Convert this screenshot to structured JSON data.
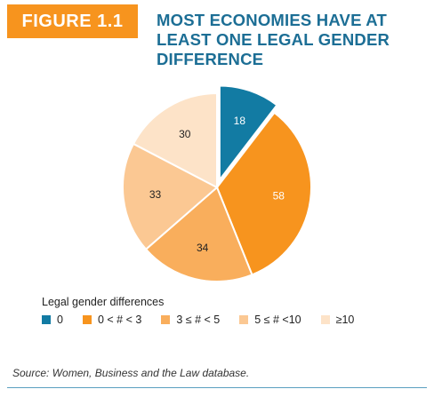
{
  "figure_label": "FIGURE 1.1",
  "title": "MOST ECONOMIES HAVE AT\nLEAST ONE LEGAL GENDER\nDIFFERENCE",
  "legend_title": "Legal gender differences",
  "source_prefix": "Source: ",
  "source_text": "Women, Business and the Law database.",
  "colors": {
    "badge": "#f7941e",
    "title": "#1c6e95"
  },
  "chart_data": {
    "type": "pie",
    "title": "MOST ECONOMIES HAVE AT LEAST ONE LEGAL GENDER DIFFERENCE",
    "legend_title": "Legal gender differences",
    "slices": [
      {
        "label": "0",
        "value": 18,
        "color": "#127ba3",
        "exploded": true
      },
      {
        "label": "0 < # < 3",
        "value": 58,
        "color": "#f7941e"
      },
      {
        "label": "3 ≤ # < 5",
        "value": 34,
        "color": "#f9ae5c"
      },
      {
        "label": "5 ≤  # <10",
        "value": 33,
        "color": "#fbc893"
      },
      {
        "label": "≥10",
        "value": 30,
        "color": "#fde3c8"
      }
    ],
    "legend_placement": "bottom"
  }
}
